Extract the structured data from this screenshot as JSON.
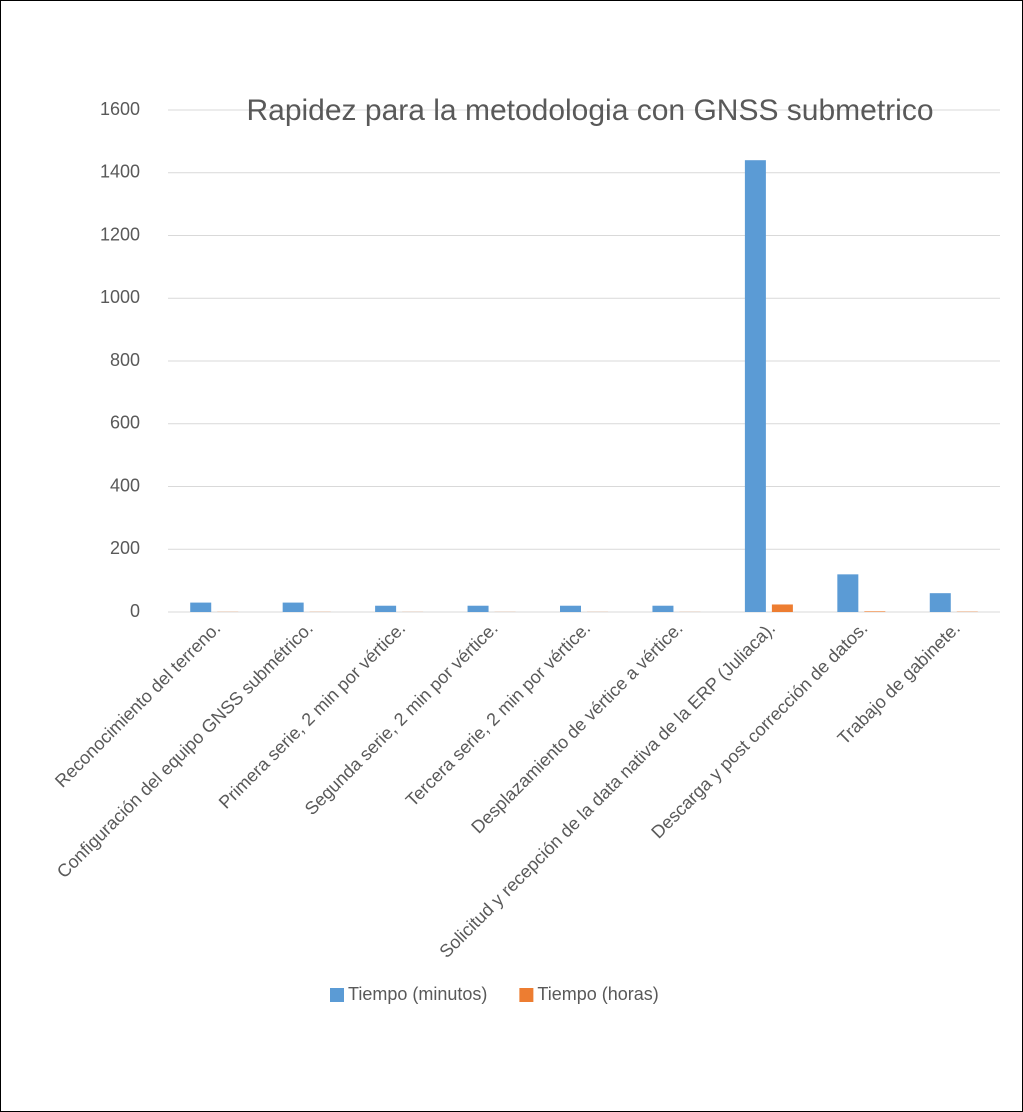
{
  "chart_data": {
    "type": "bar",
    "title": "Rapidez para la metodologia con GNSS submetrico",
    "categories": [
      "Reconocimiento del terreno.",
      "Configuración del equipo GNSS submétrico.",
      "Primera serie, 2 min por vértice.",
      "Segunda serie, 2 min por vértice.",
      "Tercera serie, 2 min por vértice.",
      "Desplazamiento de vértice a vértice.",
      "Solicitud y recepción de la data nativa de la ERP (Juliaca).",
      "Descarga y post corrección de datos.",
      "Trabajo de gabinete."
    ],
    "series": [
      {
        "name": "Tiempo (minutos)",
        "color": "#5b9bd5",
        "values": [
          30,
          30,
          20,
          20,
          20,
          20,
          1440,
          120,
          60
        ]
      },
      {
        "name": "Tiempo (horas)",
        "color": "#ed7d31",
        "values": [
          0.5,
          0.5,
          0.33,
          0.33,
          0.33,
          0.33,
          24,
          2,
          1
        ]
      }
    ],
    "ylim": [
      0,
      1600
    ],
    "yticks": [
      0,
      200,
      400,
      600,
      800,
      1000,
      1200,
      1400,
      1600
    ],
    "grid": true,
    "legend": "bottom"
  }
}
